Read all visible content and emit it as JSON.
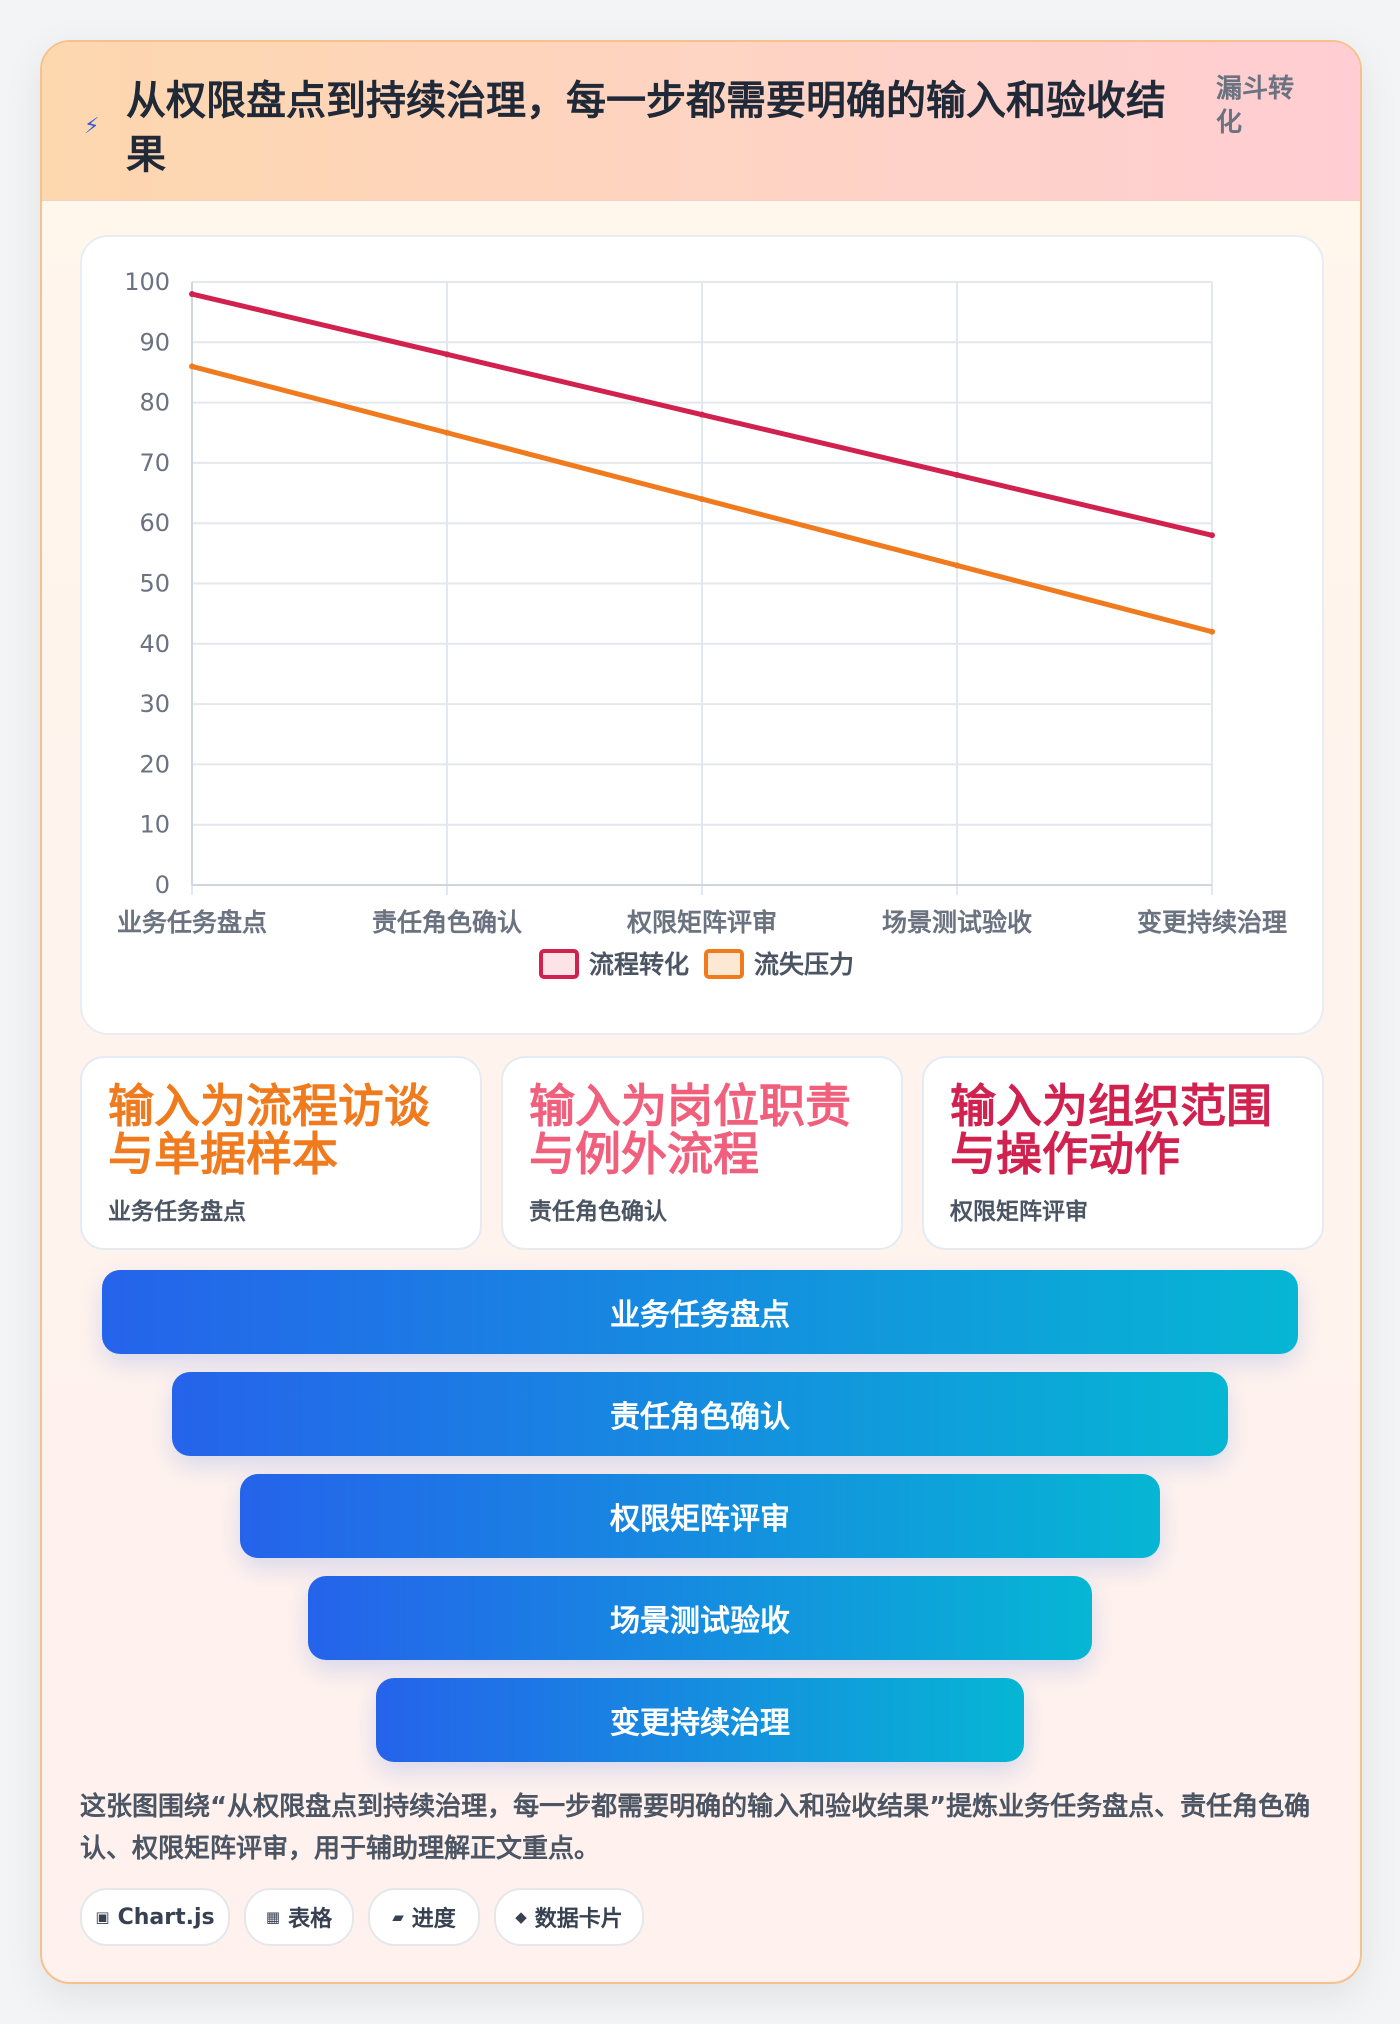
{
  "header": {
    "icon": "lightning-icon",
    "title": "从权限盘点到持续治理，每一步都需要明确的输入和验收结果",
    "tag": "漏斗转化"
  },
  "chart_data": {
    "type": "line",
    "categories": [
      "业务任务盘点",
      "责任角色确认",
      "权限矩阵评审",
      "场景测试验收",
      "变更持续治理"
    ],
    "series": [
      {
        "name": "流程转化",
        "values": [
          98,
          88,
          78,
          68,
          58
        ],
        "color": "#d0214f"
      },
      {
        "name": "流失压力",
        "values": [
          86,
          75,
          64,
          53,
          42
        ],
        "color": "#f07b1f"
      }
    ],
    "ylim": [
      0,
      100
    ],
    "ytick_step": 10,
    "grid": true,
    "legend": "bottom"
  },
  "kpi_cards": [
    {
      "value": "输入为流程访谈与单据样本",
      "label": "业务任务盘点",
      "color": "#f07b1f"
    },
    {
      "value": "输入为岗位职责与例外流程",
      "label": "责任角色确认",
      "color": "#f0607d"
    },
    {
      "value": "输入为组织范围与操作动作",
      "label": "权限矩阵评审",
      "color": "#d0214f"
    }
  ],
  "funnel": [
    {
      "label": "业务任务盘点"
    },
    {
      "label": "责任角色确认"
    },
    {
      "label": "权限矩阵评审"
    },
    {
      "label": "场景测试验收"
    },
    {
      "label": "变更持续治理"
    }
  ],
  "description": "这张图围绕“从权限盘点到持续治理，每一步都需要明确的输入和验收结果”提炼业务任务盘点、责任角色确认、权限矩阵评审，用于辅助理解正文重点。",
  "chips": [
    {
      "icon": "▣",
      "icon_name": "chart-icon",
      "label": "Chart.js"
    },
    {
      "icon": "▦",
      "icon_name": "table-icon",
      "label": "表格"
    },
    {
      "icon": "▰",
      "icon_name": "progress-icon",
      "label": "进度"
    },
    {
      "icon": "◆",
      "icon_name": "data-card-icon",
      "label": "数据卡片"
    }
  ]
}
